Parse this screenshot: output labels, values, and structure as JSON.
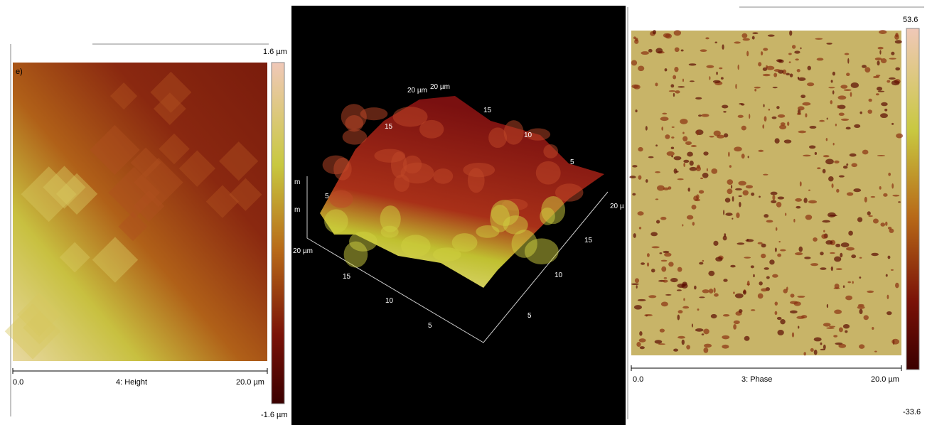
{
  "left_panel": {
    "label": "e)",
    "scale_max": "1.6 µm",
    "scale_min": "-1.6 µm",
    "axis_start": "0.0",
    "channel": "4: Height",
    "axis_end": "20.0 µm"
  },
  "middle_panel": {
    "top_labels": [
      "20 µm",
      "20 µm",
      "15",
      "15",
      "10",
      "5"
    ],
    "side_labels": [
      "m",
      "m",
      "5"
    ],
    "front_labels": [
      "20 µm",
      "15",
      "10",
      "5"
    ],
    "right_labels": [
      "20 µ",
      "15",
      "10",
      "5"
    ]
  },
  "right_panel": {
    "scale_max": "53.6",
    "scale_min": "-33.6",
    "axis_start": "0.0",
    "channel": "3: Phase",
    "axis_end": "20.0 µm"
  }
}
